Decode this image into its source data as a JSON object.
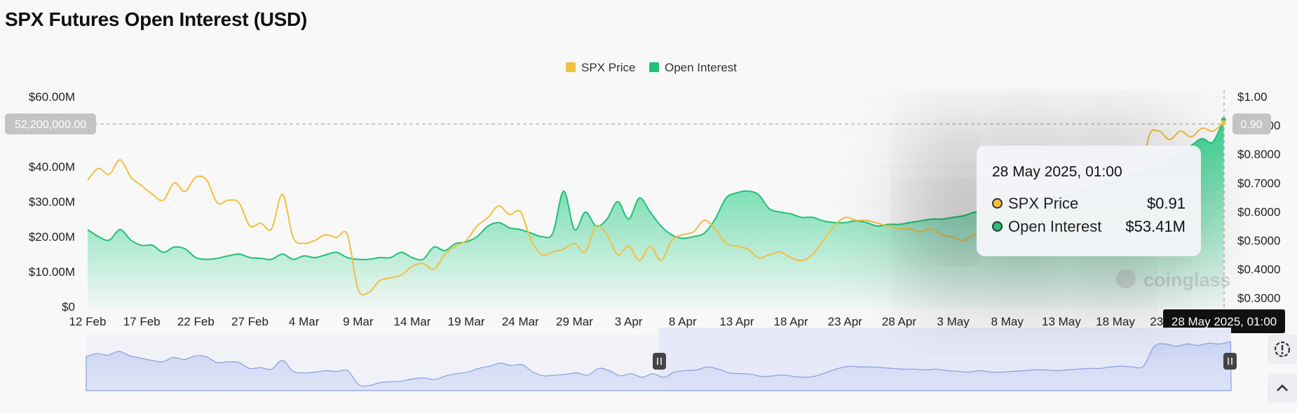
{
  "title": "SPX Futures Open Interest (USD)",
  "legend": [
    {
      "label": "SPX Price",
      "color": "#f0c040"
    },
    {
      "label": "Open Interest",
      "color": "#22c07a"
    }
  ],
  "crosshair": {
    "left_label": "52,200,000.00",
    "right_label": "0.90",
    "bottom_label": "28 May 2025, 01:00"
  },
  "tooltip": {
    "time": "28 May 2025, 01:00",
    "rows": [
      {
        "name": "SPX Price",
        "value": "$0.91",
        "color": "#f0c040"
      },
      {
        "name": "Open Interest",
        "value": "$53.41M",
        "color": "#22c07a"
      }
    ]
  },
  "watermark": "coinglass",
  "chart_data": {
    "type": "line",
    "title": "SPX Futures Open Interest (USD)",
    "x_ticks": [
      "12 Feb",
      "17 Feb",
      "22 Feb",
      "27 Feb",
      "4 Mar",
      "9 Mar",
      "14 Mar",
      "19 Mar",
      "24 Mar",
      "29 Mar",
      "3 Apr",
      "8 Apr",
      "13 Apr",
      "18 Apr",
      "23 Apr",
      "28 Apr",
      "3 May",
      "8 May",
      "13 May",
      "18 May",
      "23 May",
      "28 May 2025, 01:00"
    ],
    "y_left_ticks": [
      "$0",
      "$10.00M",
      "$20.00M",
      "$30.00M",
      "$40.00M",
      "$50.00M",
      "$60.00M"
    ],
    "y_right_ticks": [
      "$0.3000",
      "$0.4000",
      "$0.5000",
      "$0.6000",
      "$0.7000",
      "$0.8000",
      "$0.9000",
      "$1.00"
    ],
    "ylim_left": [
      0,
      60
    ],
    "ylim_right": [
      0.27,
      1.0
    ],
    "day_range": [
      0,
      105.04
    ],
    "series": [
      {
        "name": "SPX Price",
        "axis": "right",
        "color": "#f0c040",
        "x": [
          0,
          1,
          2,
          3,
          4,
          5,
          6,
          7,
          8,
          9,
          10,
          11,
          12,
          13,
          14,
          15,
          16,
          17,
          18,
          19,
          20,
          21,
          22,
          23,
          24,
          25,
          26,
          27,
          28,
          29,
          30,
          31,
          32,
          33,
          34,
          35,
          36,
          37,
          38,
          39,
          40,
          41,
          42,
          43,
          44,
          45,
          46,
          47,
          48,
          49,
          50,
          51,
          52,
          53,
          54,
          55,
          56,
          57,
          58,
          59,
          60,
          61,
          62,
          63,
          64,
          65,
          66,
          67,
          68,
          69,
          70,
          71,
          72,
          73,
          74,
          75,
          76,
          77,
          78,
          79,
          80,
          81,
          82,
          83,
          84,
          85,
          86,
          87,
          88,
          89,
          90,
          91,
          92,
          93,
          94,
          95,
          96,
          97,
          98,
          99,
          100,
          101,
          102,
          103,
          104,
          105
        ],
        "values": [
          0.71,
          0.75,
          0.73,
          0.78,
          0.72,
          0.69,
          0.66,
          0.64,
          0.7,
          0.67,
          0.72,
          0.71,
          0.63,
          0.64,
          0.63,
          0.55,
          0.56,
          0.54,
          0.66,
          0.51,
          0.49,
          0.5,
          0.52,
          0.51,
          0.52,
          0.33,
          0.32,
          0.36,
          0.37,
          0.38,
          0.41,
          0.42,
          0.4,
          0.45,
          0.48,
          0.5,
          0.55,
          0.58,
          0.62,
          0.59,
          0.6,
          0.5,
          0.45,
          0.46,
          0.47,
          0.49,
          0.46,
          0.55,
          0.52,
          0.45,
          0.48,
          0.43,
          0.48,
          0.43,
          0.5,
          0.52,
          0.53,
          0.57,
          0.54,
          0.49,
          0.48,
          0.47,
          0.44,
          0.45,
          0.46,
          0.44,
          0.43,
          0.45,
          0.5,
          0.55,
          0.58,
          0.57,
          0.57,
          0.56,
          0.55,
          0.54,
          0.54,
          0.53,
          0.54,
          0.52,
          0.51,
          0.5,
          0.52,
          0.5,
          0.5,
          0.51,
          0.52,
          0.53,
          0.53,
          0.52,
          0.53,
          0.54,
          0.55,
          0.55,
          0.57,
          0.58,
          0.57,
          0.58,
          0.85,
          0.88,
          0.85,
          0.88,
          0.86,
          0.89,
          0.88,
          0.91
        ]
      },
      {
        "name": "Open Interest",
        "axis": "left",
        "color": "#22c07a",
        "x": [
          0,
          1,
          2,
          3,
          4,
          5,
          6,
          7,
          8,
          9,
          10,
          11,
          12,
          13,
          14,
          15,
          16,
          17,
          18,
          19,
          20,
          21,
          22,
          23,
          24,
          25,
          26,
          27,
          28,
          29,
          30,
          31,
          32,
          33,
          34,
          35,
          36,
          37,
          38,
          39,
          40,
          41,
          42,
          43,
          44,
          45,
          46,
          47,
          48,
          49,
          50,
          51,
          52,
          53,
          54,
          55,
          56,
          57,
          58,
          59,
          60,
          61,
          62,
          63,
          64,
          65,
          66,
          67,
          68,
          69,
          70,
          71,
          72,
          73,
          74,
          75,
          76,
          77,
          78,
          79,
          80,
          81,
          82,
          83,
          84,
          85,
          86,
          87,
          88,
          89,
          90,
          91,
          92,
          93,
          94,
          95,
          96,
          97,
          98,
          99,
          100,
          101,
          102,
          103,
          104,
          105
        ],
        "values": [
          22,
          20,
          19,
          22,
          19,
          17.5,
          17.5,
          15.5,
          17,
          16.5,
          14,
          13.5,
          13.8,
          14.5,
          15,
          14,
          13.8,
          13.5,
          15,
          13.5,
          14.5,
          14,
          14.8,
          15.5,
          14,
          13.5,
          13.5,
          14,
          14,
          15.5,
          14,
          13.5,
          17,
          16,
          18,
          18.5,
          20,
          23,
          24,
          22.5,
          22,
          21,
          20,
          21,
          33,
          22,
          27,
          23,
          25,
          30,
          25,
          31,
          27,
          23,
          20.5,
          19.5,
          20,
          21,
          25,
          31,
          32.5,
          33,
          32,
          28,
          27,
          26.5,
          25.5,
          25.5,
          24.5,
          24,
          24,
          24.5,
          24,
          23,
          23.5,
          23.5,
          24,
          24.5,
          25,
          25,
          25.5,
          26,
          27,
          27.5,
          28,
          28.5,
          29,
          29.5,
          30,
          31,
          31.5,
          32,
          33,
          34,
          35,
          36,
          37,
          38,
          39,
          40,
          42,
          44,
          46,
          48,
          47,
          53.4
        ]
      }
    ]
  }
}
